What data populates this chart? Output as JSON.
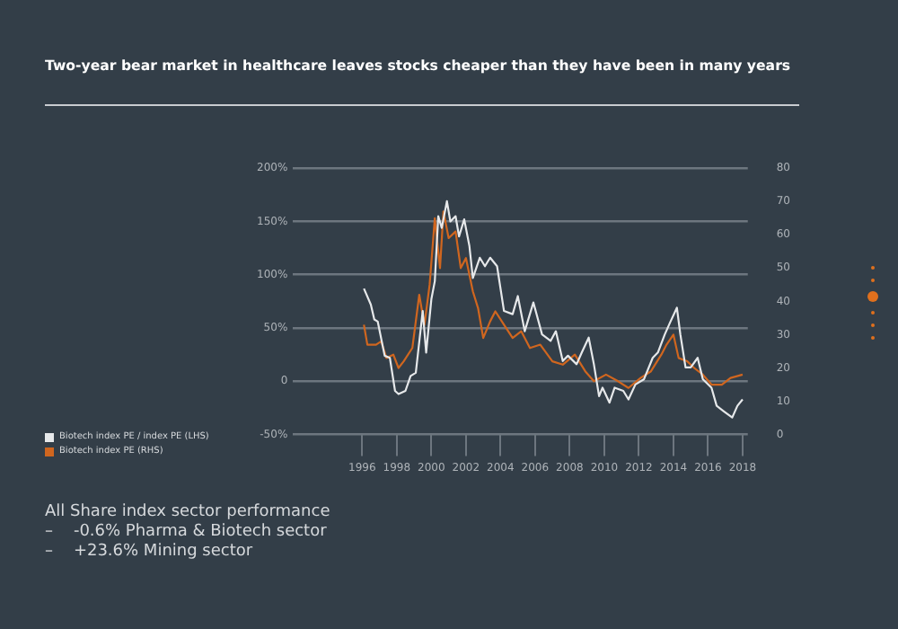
{
  "chart_data": {
    "type": "line",
    "title": "Two-year bear market in healthcare leaves stocks cheaper than they have been in many years",
    "xlim": [
      1992,
      2018.3
    ],
    "xticks": [
      1996,
      1998,
      2000,
      2002,
      2004,
      2006,
      2008,
      2010,
      2012,
      2014,
      2016,
      2018
    ],
    "ylim": [
      -50,
      200
    ],
    "yticks": [
      {
        "value": -50,
        "label": "-50%"
      },
      0,
      {
        "value": 50,
        "label": "50%"
      },
      {
        "value": 100,
        "label": "100%"
      },
      {
        "value": 150,
        "label": "150%"
      },
      {
        "value": 200,
        "label": "200%"
      }
    ],
    "y2lim": [
      0,
      80
    ],
    "y2ticks": [
      0,
      10,
      20,
      30,
      40,
      50,
      60,
      70,
      80
    ],
    "grid": "y",
    "legend": "bottom left",
    "marker": "none",
    "series": [
      {
        "name": "Biotech index PE / index PE (LHS)",
        "color": "#e6e8ea",
        "x": [
          1996.1,
          1996.5,
          1996.7,
          1996.9,
          1997.3,
          1997.6,
          1997.9,
          1998.1,
          1998.5,
          1998.8,
          1999.1,
          1999.5,
          1999.7,
          2000.0,
          2000.2,
          2000.4,
          2000.6,
          2000.9,
          2001.1,
          2001.4,
          2001.6,
          2001.9,
          2002.2,
          2002.4,
          2002.8,
          2003.1,
          2003.4,
          2003.8,
          2004.2,
          2004.7,
          2005.0,
          2005.4,
          2005.9,
          2006.4,
          2006.9,
          2007.2,
          2007.6,
          2007.9,
          2008.4,
          2008.7,
          2009.1,
          2009.4,
          2009.7,
          2009.9,
          2010.3,
          2010.6,
          2011.1,
          2011.4,
          2011.8,
          2012.3,
          2012.8,
          2013.1,
          2013.5,
          2013.8,
          2014.2,
          2014.4,
          2014.7,
          2015.0,
          2015.4,
          2015.7,
          2016.2,
          2016.5,
          2016.9,
          2017.4,
          2017.7,
          2018.0
        ],
        "values": [
          87,
          72,
          58,
          56,
          24,
          22,
          -9,
          -12,
          -9,
          5,
          8,
          66,
          27,
          77,
          94,
          155,
          144,
          169,
          150,
          155,
          136,
          152,
          127,
          97,
          116,
          108,
          116,
          108,
          66,
          63,
          80,
          47,
          74,
          44,
          38,
          47,
          19,
          24,
          16,
          27,
          41,
          16,
          -14,
          -6,
          -20,
          -6,
          -9,
          -17,
          -3,
          2,
          22,
          27,
          44,
          55,
          69,
          44,
          13,
          13,
          22,
          2,
          -6,
          -23,
          -28,
          -34,
          -23,
          -17
        ]
      },
      {
        "name": "Biotech index PE (RHS)",
        "color": "#d0661f",
        "axis": "y2",
        "x": [
          1996.1,
          1996.3,
          1996.8,
          1997.1,
          1997.4,
          1997.8,
          1998.1,
          1998.4,
          1998.9,
          1999.3,
          1999.6,
          1999.9,
          2000.2,
          2000.5,
          2000.7,
          2001.0,
          2001.4,
          2001.7,
          2002.0,
          2002.4,
          2002.7,
          2003.0,
          2003.4,
          2003.7,
          2004.2,
          2004.7,
          2005.2,
          2005.7,
          2006.3,
          2007.0,
          2007.6,
          2008.3,
          2008.9,
          2009.4,
          2010.1,
          2010.8,
          2011.4,
          2012.1,
          2012.7,
          2013.3,
          2013.6,
          2014.0,
          2014.3,
          2014.8,
          2015.2,
          2015.7,
          2016.2,
          2016.8,
          2017.3,
          2018.0
        ],
        "values": [
          33,
          27,
          27,
          28,
          23,
          24,
          20,
          22,
          26,
          42,
          33,
          45,
          65,
          50,
          67,
          59,
          61,
          50,
          53,
          43,
          38,
          29,
          34,
          37,
          33,
          29,
          31,
          26,
          27,
          22,
          21,
          24,
          19,
          16,
          18,
          16,
          14,
          17,
          19,
          24,
          27,
          30,
          23,
          22,
          20,
          18,
          15,
          15,
          17,
          18
        ]
      }
    ],
    "annotations": [
      "All Share index sector performance",
      "–    -0.6% Pharma & Biotech sector",
      "–    +23.6% Mining sector"
    ]
  }
}
